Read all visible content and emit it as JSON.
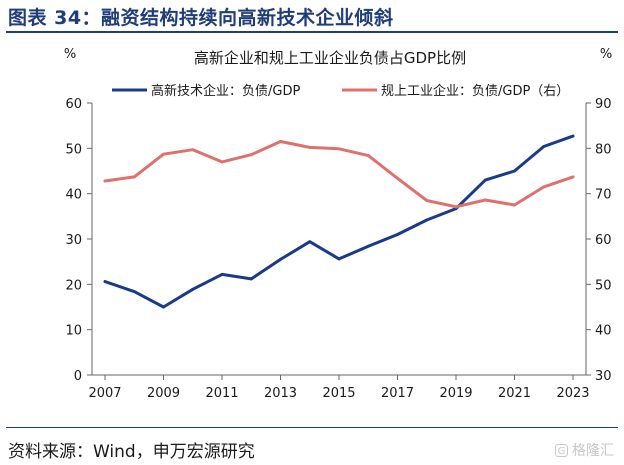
{
  "figure": {
    "title": "图表 34：融资结构持续向高新技术企业倾斜",
    "source": "资料来源：Wind，申万宏源研究",
    "watermark": "格隆汇",
    "watermark_icon": "G"
  },
  "chart_data": {
    "type": "line",
    "title": "高新企业和规上工业企业负债占GDP比例",
    "ylabel_left": "%",
    "ylabel_right": "%",
    "ylim_left": [
      0,
      60
    ],
    "ylim_right": [
      30,
      90
    ],
    "yticks_left": [
      0,
      10,
      20,
      30,
      40,
      50,
      60
    ],
    "yticks_right": [
      30,
      40,
      50,
      60,
      70,
      80,
      90
    ],
    "x": [
      2007,
      2008,
      2009,
      2010,
      2011,
      2012,
      2013,
      2014,
      2015,
      2016,
      2017,
      2018,
      2019,
      2020,
      2021,
      2022,
      2023
    ],
    "xticks": [
      "2007",
      "2009",
      "2011",
      "2013",
      "2015",
      "2017",
      "2019",
      "2021",
      "2023"
    ],
    "legend_position": "top",
    "grid": false,
    "series": [
      {
        "name": "高新技术企业：负债/GDP",
        "axis": "left",
        "color": "#1a3a8a",
        "values": [
          20.6,
          18.4,
          15.0,
          18.9,
          22.2,
          21.2,
          25.5,
          29.4,
          25.6,
          28.4,
          31.0,
          34.2,
          36.7,
          43.0,
          45.0,
          50.4,
          52.7
        ]
      },
      {
        "name": "规上工业企业：负债/GDP（右）",
        "axis": "right",
        "color": "#e0706c",
        "values": [
          72.8,
          73.7,
          78.7,
          79.7,
          77.0,
          78.6,
          81.5,
          80.2,
          79.9,
          78.4,
          73.4,
          68.5,
          67.1,
          68.6,
          67.5,
          71.5,
          73.7
        ]
      }
    ]
  }
}
